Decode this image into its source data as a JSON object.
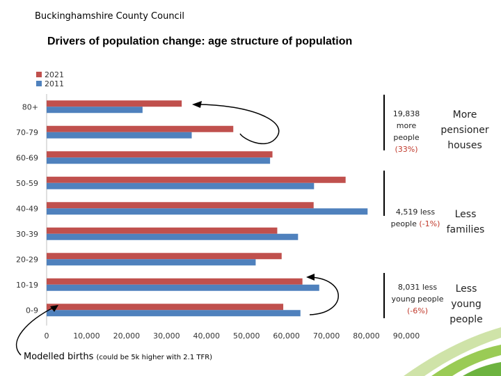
{
  "header": {
    "org": "Buckinghamshire County Council",
    "title": "Drivers of population change: age structure of population"
  },
  "chart_data": {
    "type": "bar",
    "orientation": "horizontal",
    "categories": [
      "80+",
      "70-79",
      "60-69",
      "50-59",
      "40-49",
      "30-39",
      "20-29",
      "10-19",
      "0-9"
    ],
    "series": [
      {
        "name": "2021",
        "color": "#c0504d",
        "values": [
          33800,
          46700,
          56500,
          74800,
          66800,
          57700,
          58800,
          64000,
          59200
        ]
      },
      {
        "name": "2011",
        "color": "#4f81bd",
        "values": [
          24000,
          36300,
          55900,
          66900,
          80300,
          62900,
          52300,
          68200,
          63500
        ]
      }
    ],
    "xlim": [
      0,
      90000
    ],
    "xticks": [
      "0",
      "10,000",
      "20,000",
      "30,000",
      "40,000",
      "50,000",
      "60,000",
      "70,000",
      "80,000",
      "90,000"
    ],
    "legend": [
      "2021",
      "2011"
    ]
  },
  "annotations": {
    "pensioners": {
      "line1": "19,838",
      "line2": "more",
      "line3": "people",
      "line4": "(33%)",
      "big1": "More",
      "big2": "pensioner",
      "big3": "houses"
    },
    "families": {
      "line1": "4,519 less",
      "line2a": "people ",
      "line2b": "(-1%)",
      "big1": "Less",
      "big2": "families"
    },
    "young": {
      "line1": "8,031 less",
      "line2": "young people",
      "line3": "(-6%)",
      "big1": "Less",
      "big2": "young",
      "big3": "people"
    },
    "births": {
      "main": "Modelled births ",
      "note": "(could be 5k higher with 2.1 TFR)"
    }
  }
}
